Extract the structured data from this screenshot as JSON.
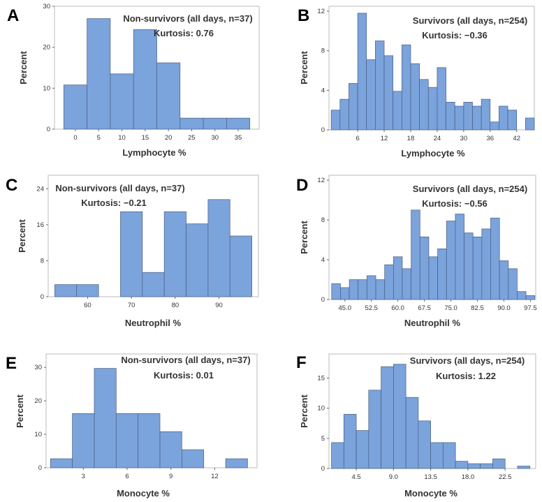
{
  "chart_data": [
    {
      "id": "A",
      "type": "histogram",
      "panel_label": "A",
      "xlabel": "Lymphocyte %",
      "ylabel": "Percent",
      "annotation_lines": [
        "Non-survivors (all days, n=37)",
        "Kurtosis: 0.76"
      ],
      "bin_edges": [
        -2.5,
        2.5,
        7.5,
        12.5,
        17.5,
        22.5,
        27.5,
        32.5,
        37.5
      ],
      "values": [
        10.8,
        27.0,
        13.5,
        24.3,
        16.2,
        2.7,
        2.7,
        2.7
      ],
      "x_ticks": [
        0,
        5,
        10,
        15,
        20,
        25,
        30,
        35
      ],
      "x_tick_labels": [
        "0",
        "5",
        "10",
        "15",
        "20",
        "25",
        "30",
        "35"
      ],
      "y_ticks": [
        0,
        10,
        20,
        30
      ],
      "y_tick_labels": [
        "0",
        "10",
        "20",
        "30"
      ],
      "xlim": [
        -4.5,
        39.5
      ],
      "ylim": [
        0,
        30
      ]
    },
    {
      "id": "B",
      "type": "histogram",
      "panel_label": "B",
      "xlabel": "Lymphocyte %",
      "ylabel": "Percent",
      "annotation_lines": [
        "Survivors (all days, n=254)",
        "Kurtosis: −0.36"
      ],
      "bin_edges": [
        0,
        2,
        4,
        6,
        8,
        10,
        12,
        14,
        16,
        18,
        20,
        22,
        24,
        26,
        28,
        30,
        32,
        34,
        36,
        38,
        40,
        42,
        44,
        46
      ],
      "values": [
        2.0,
        3.1,
        4.7,
        11.8,
        7.1,
        9.0,
        7.5,
        3.9,
        8.6,
        6.7,
        5.1,
        4.3,
        6.3,
        2.8,
        2.4,
        2.8,
        2.4,
        3.1,
        0.8,
        2.4,
        2.0,
        0,
        1.2
      ],
      "x_ticks": [
        6,
        12,
        18,
        24,
        30,
        36,
        42
      ],
      "x_tick_labels": [
        "6",
        "12",
        "18",
        "24",
        "30",
        "36",
        "42"
      ],
      "y_ticks": [
        0,
        4,
        8,
        12
      ],
      "y_tick_labels": [
        "0",
        "4",
        "8",
        "12"
      ],
      "xlim": [
        -0.5,
        46
      ],
      "ylim": [
        0,
        12.5
      ]
    },
    {
      "id": "C",
      "type": "histogram",
      "panel_label": "C",
      "xlabel": "Neutrophil %",
      "ylabel": "Percent",
      "annotation_lines": [
        "Non-survivors (all days, n=37)",
        "Kurtosis: −0.21"
      ],
      "bin_edges": [
        52.5,
        57.5,
        62.5,
        67.5,
        72.5,
        77.5,
        82.5,
        87.5,
        92.5,
        97.5
      ],
      "values": [
        2.7,
        2.7,
        0,
        18.9,
        5.4,
        18.9,
        16.2,
        21.6,
        13.5
      ],
      "x_ticks": [
        60,
        70,
        80,
        90
      ],
      "x_tick_labels": [
        "60",
        "70",
        "80",
        "90"
      ],
      "y_ticks": [
        0,
        8,
        16,
        24
      ],
      "y_tick_labels": [
        "0",
        "8",
        "16",
        "24"
      ],
      "xlim": [
        51,
        99
      ],
      "ylim": [
        0,
        27
      ]
    },
    {
      "id": "D",
      "type": "histogram",
      "panel_label": "D",
      "xlabel": "Neutrophil %",
      "ylabel": "Percent",
      "annotation_lines": [
        "Survivors (all days, n=254)",
        "Kurtosis: −0.56"
      ],
      "bin_edges": [
        41.25,
        43.75,
        46.25,
        48.75,
        51.25,
        53.75,
        56.25,
        58.75,
        61.25,
        63.75,
        66.25,
        68.75,
        71.25,
        73.75,
        76.25,
        78.75,
        81.25,
        83.75,
        86.25,
        88.75,
        91.25,
        93.75,
        96.25,
        98.75
      ],
      "values": [
        1.6,
        1.2,
        2.0,
        2.0,
        2.4,
        2.0,
        3.5,
        4.3,
        3.1,
        9.0,
        6.3,
        4.3,
        5.1,
        7.9,
        8.6,
        6.7,
        6.3,
        7.1,
        8.2,
        3.9,
        3.1,
        0.8,
        0.4
      ],
      "x_ticks": [
        45.0,
        52.5,
        60.0,
        67.5,
        75.0,
        82.5,
        90.0,
        97.5
      ],
      "x_tick_labels": [
        "45.0",
        "52.5",
        "60.0",
        "67.5",
        "75.0",
        "82.5",
        "90.0",
        "97.5"
      ],
      "y_ticks": [
        0,
        4,
        8,
        12
      ],
      "y_tick_labels": [
        "0",
        "4",
        "8",
        "12"
      ],
      "xlim": [
        40.5,
        99
      ],
      "ylim": [
        0,
        12.5
      ]
    },
    {
      "id": "E",
      "type": "histogram",
      "panel_label": "E",
      "xlabel": "Monocyte %",
      "ylabel": "Percent",
      "annotation_lines": [
        "Non-survivors (all days, n=37)",
        "Kurtosis: 0.01"
      ],
      "bin_edges": [
        0.75,
        2.25,
        3.75,
        5.25,
        6.75,
        8.25,
        9.75,
        11.25,
        12.75,
        14.25
      ],
      "values": [
        2.7,
        16.2,
        29.7,
        16.2,
        16.2,
        10.8,
        5.4,
        0,
        2.7
      ],
      "x_ticks": [
        3,
        6,
        9,
        12
      ],
      "x_tick_labels": [
        "3",
        "6",
        "9",
        "12"
      ],
      "y_ticks": [
        0,
        10,
        20,
        30
      ],
      "y_tick_labels": [
        "0",
        "10",
        "20",
        "30"
      ],
      "xlim": [
        0.45,
        14.9
      ],
      "ylim": [
        0,
        34
      ]
    },
    {
      "id": "F",
      "type": "histogram",
      "panel_label": "F",
      "xlabel": "Monocyte %",
      "ylabel": "Percent",
      "annotation_lines": [
        "Survivors (all days, n=254)",
        "Kurtosis: 1.22"
      ],
      "bin_edges": [
        1.5,
        3,
        4.5,
        6,
        7.5,
        9,
        10.5,
        12,
        13.5,
        15,
        16.5,
        18,
        19.5,
        21,
        22.5,
        24,
        25.5
      ],
      "values": [
        4.3,
        9.0,
        6.3,
        13.0,
        16.9,
        17.3,
        11.8,
        7.9,
        4.3,
        4.3,
        1.2,
        0.8,
        0.8,
        1.6,
        0,
        0.4
      ],
      "x_ticks": [
        4.5,
        9.0,
        13.5,
        18.0,
        22.5
      ],
      "x_tick_labels": [
        "4.5",
        "9.0",
        "13.5",
        "18.0",
        "22.5"
      ],
      "y_ticks": [
        0,
        5,
        10,
        15
      ],
      "y_tick_labels": [
        "0",
        "5",
        "10",
        "15"
      ],
      "xlim": [
        1.2,
        26.2
      ],
      "ylim": [
        0,
        19
      ]
    }
  ]
}
